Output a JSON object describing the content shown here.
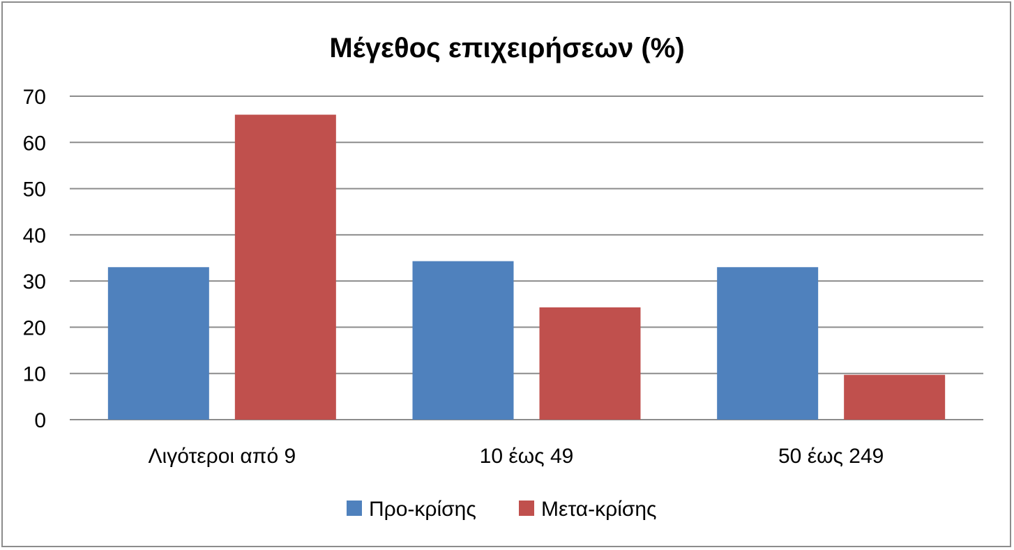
{
  "chart_data": {
    "type": "bar",
    "title": "Μέγεθος επιχειρήσεων (%)",
    "xlabel": "",
    "ylabel": "",
    "categories": [
      "Λιγότεροι από 9",
      "10 έως 49",
      "50 έως 249"
    ],
    "series": [
      {
        "name": "Προ-κρίσης",
        "values": [
          33,
          34.3,
          33
        ],
        "color": "#4f81bd"
      },
      {
        "name": "Μετα-κρίσης",
        "values": [
          66,
          24.3,
          9.7
        ],
        "color": "#c0504d"
      }
    ],
    "ylim": [
      0,
      70
    ],
    "yticks": [
      0,
      10,
      20,
      30,
      40,
      50,
      60,
      70
    ],
    "grid": true,
    "legend": "bottom"
  }
}
